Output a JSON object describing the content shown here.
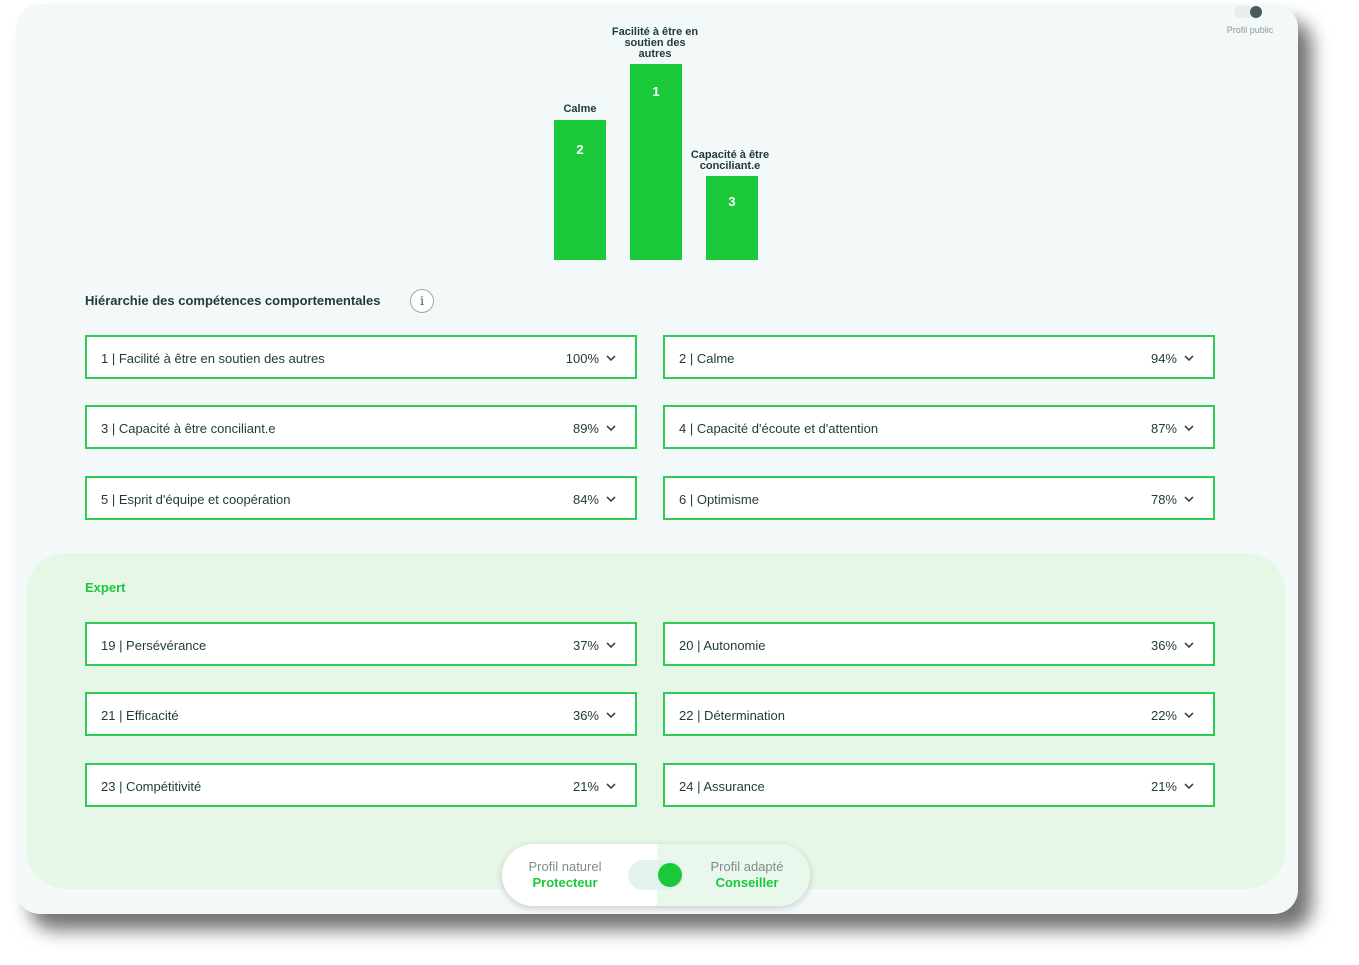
{
  "public_profile": {
    "label": "Profil public"
  },
  "podium": {
    "second": {
      "rank": "2",
      "label": "Calme"
    },
    "first": {
      "rank": "1",
      "label_lines": [
        "Facilité à être en",
        "soutien des",
        "autres"
      ]
    },
    "third": {
      "rank": "3",
      "label_lines": [
        "Capacité à être",
        "conciliant.e"
      ]
    }
  },
  "hierarchy": {
    "title": "Hiérarchie des compétences comportementales",
    "info_icon": "info-icon",
    "top_skills": [
      {
        "label": "1 | Facilité à être en soutien des autres",
        "pct": "100%"
      },
      {
        "label": "2 | Calme",
        "pct": "94%"
      },
      {
        "label": "3 | Capacité à être conciliant.e",
        "pct": "89%"
      },
      {
        "label": "4 | Capacité d'écoute et d'attention",
        "pct": "87%"
      },
      {
        "label": "5 | Esprit d'équipe et coopération",
        "pct": "84%"
      },
      {
        "label": "6 | Optimisme",
        "pct": "78%"
      }
    ]
  },
  "expert": {
    "title": "Expert",
    "skills": [
      {
        "label": "19 | Persévérance",
        "pct": "37%"
      },
      {
        "label": "20 | Autonomie",
        "pct": "36%"
      },
      {
        "label": "21 | Efficacité",
        "pct": "36%"
      },
      {
        "label": "22 | Détermination",
        "pct": "22%"
      },
      {
        "label": "23 | Compétitivité",
        "pct": "21%"
      },
      {
        "label": "24 | Assurance",
        "pct": "21%"
      }
    ]
  },
  "profile_switch": {
    "natural_title": "Profil naturel",
    "natural_value": "Protecteur",
    "adapted_title": "Profil adapté",
    "adapted_value": "Conseiller"
  },
  "colors": {
    "accent": "#19c93a",
    "border": "#2ecc55",
    "text": "#1f3a3a"
  }
}
